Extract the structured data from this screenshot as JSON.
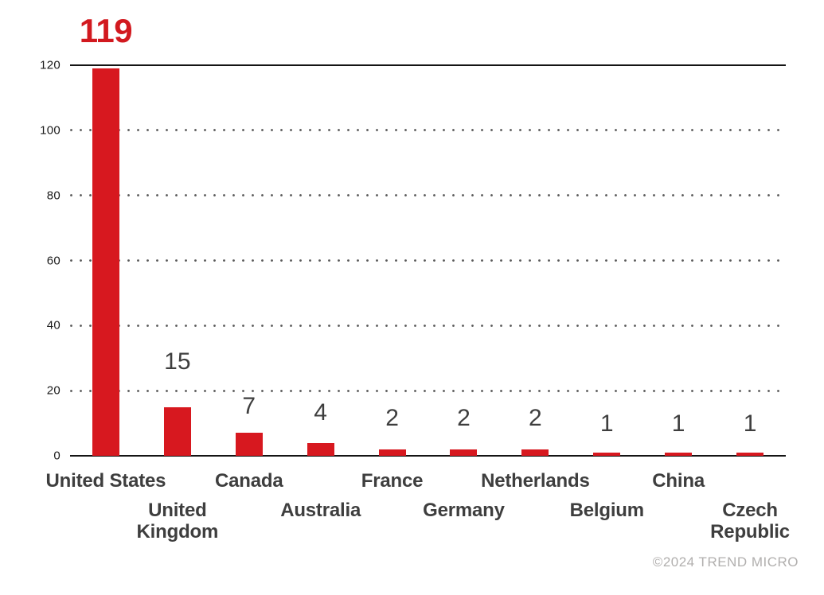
{
  "chart_data": {
    "type": "bar",
    "categories": [
      "United States",
      "United Kingdom",
      "Canada",
      "Australia",
      "France",
      "Germany",
      "Netherlands",
      "Belgium",
      "China",
      "Czech Republic"
    ],
    "values": [
      119,
      15,
      7,
      4,
      2,
      2,
      2,
      1,
      1,
      1
    ],
    "value_labels": [
      "119",
      "15",
      "7",
      "4",
      "2",
      "2",
      "2",
      "1",
      "1",
      "1"
    ],
    "highlight_index": 0,
    "title": "",
    "xlabel": "",
    "ylabel": "",
    "ylim": [
      0,
      120
    ],
    "yticks": [
      0,
      20,
      40,
      60,
      80,
      100,
      120
    ],
    "grid": "horizontal-dotted",
    "legend": "none",
    "colors": {
      "bar": "#d7181f",
      "highlight_label": "#d2191f",
      "value_label": "#3e3e3e",
      "category_label": "#3e3e3e",
      "tick_label": "#1c1c1c",
      "axis_line": "#141414",
      "grid_dot": "#5a5a5a",
      "background": "#ffffff"
    }
  },
  "footer": {
    "credit": "©2024 TREND MICRO",
    "color": "#b1afae"
  }
}
